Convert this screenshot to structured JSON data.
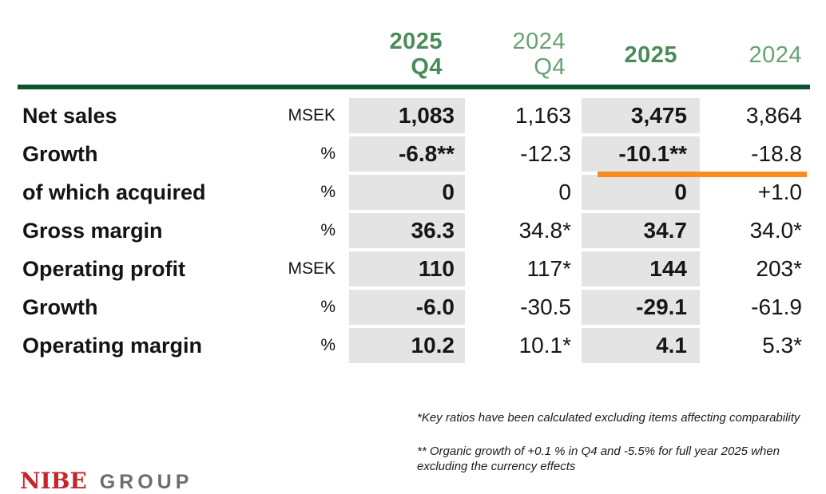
{
  "slide": {
    "header": {
      "columns": [
        {
          "line1": "2025",
          "line2": "Q4"
        },
        {
          "line1": "2024",
          "line2": "Q4"
        },
        {
          "line1": "2025",
          "line2": ""
        },
        {
          "line1": "2024",
          "line2": ""
        }
      ]
    },
    "table": {
      "rows": [
        {
          "label": "Net sales",
          "unit": "MSEK",
          "values": [
            "1,083",
            "1,163",
            "3,475",
            "3,864"
          ]
        },
        {
          "label": "Growth",
          "unit": "%",
          "values": [
            "-6.8**",
            "-12.3",
            "-10.1**",
            "-18.8"
          ]
        },
        {
          "label": "of which acquired",
          "unit": "%",
          "values": [
            "0",
            "0",
            "0",
            "+1.0"
          ]
        },
        {
          "label": "Gross margin",
          "unit": "%",
          "values": [
            "36.3",
            "34.8*",
            "34.7",
            "34.0*"
          ]
        },
        {
          "label": "Operating profit",
          "unit": "MSEK",
          "values": [
            "110",
            "117*",
            "144",
            "203*"
          ]
        },
        {
          "label": "Growth",
          "unit": "%",
          "values": [
            "-6.0",
            "-30.5",
            "-29.1",
            "-61.9"
          ]
        },
        {
          "label": "Operating margin",
          "unit": "%",
          "values": [
            "10.2",
            "10.1*",
            "4.1",
            "5.3*"
          ]
        }
      ]
    },
    "footnotes": {
      "note1": "*Key ratios have been calculated excluding items affecting comparability",
      "note2_line1": "** Organic growth of +0.1 % in Q4 and -5.5% for full year 2025 when",
      "note2_line2": "excluding the currency effects"
    },
    "logo": {
      "brand": "NIBE",
      "suffix": "GROUP"
    },
    "colors": {
      "header_green_bold": "#4a8b59",
      "header_green_regular": "#68a173",
      "rule_green": "#0a5230",
      "highlight_column_gray": "#e4e4e4",
      "accent_orange": "#fa8c1f",
      "logo_red": "#c4262b",
      "logo_gray": "#6d6d6d"
    }
  }
}
